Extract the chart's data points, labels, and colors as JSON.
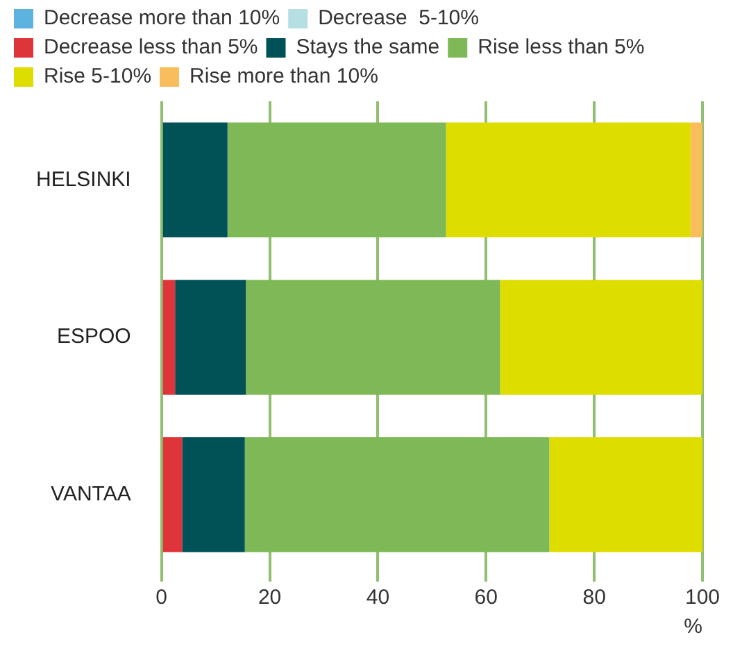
{
  "chart_data": {
    "type": "bar",
    "orientation": "horizontal",
    "stacked": true,
    "categories": [
      "HELSINKI",
      "ESPOO",
      "VANTAA"
    ],
    "series": [
      {
        "name": "Decrease more than 10%",
        "color": "#5db3e0",
        "values": [
          0,
          0,
          0
        ]
      },
      {
        "name": "Decrease  5-10%",
        "color": "#b5dfe3",
        "values": [
          0,
          0,
          0
        ]
      },
      {
        "name": "Decrease less than 5%",
        "color": "#dd3539",
        "values": [
          0,
          2.5,
          3.8
        ]
      },
      {
        "name": "Stays the same",
        "color": "#005256",
        "values": [
          12.2,
          13.1,
          11.6
        ]
      },
      {
        "name": "Rise less than 5%",
        "color": "#7fb857",
        "values": [
          40.4,
          47.0,
          56.3
        ]
      },
      {
        "name": "Rise 5-10%",
        "color": "#dedd00",
        "values": [
          45.2,
          37.4,
          28.3
        ]
      },
      {
        "name": "Rise more than 10%",
        "color": "#f9bd5d",
        "values": [
          2.2,
          0,
          0
        ]
      }
    ],
    "xlim": [
      0,
      100
    ],
    "xticks": [
      0,
      20,
      40,
      60,
      80,
      100
    ],
    "xlabel": "%",
    "grid": "x",
    "legend": "top left"
  }
}
